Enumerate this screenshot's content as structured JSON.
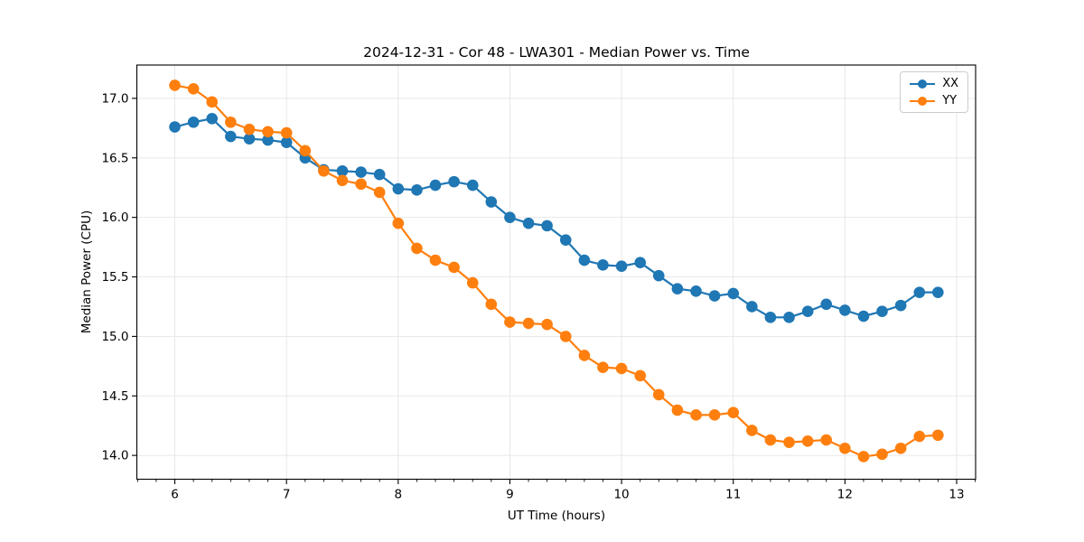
{
  "chart_data": {
    "type": "line",
    "title": "2024-12-31 - Cor 48 - LWA301 - Median Power vs. Time",
    "xlabel": "UT Time (hours)",
    "ylabel": "Median Power (CPU)",
    "xlim": [
      5.66,
      13.17
    ],
    "ylim": [
      13.8,
      17.28
    ],
    "x_ticks": [
      6,
      7,
      8,
      9,
      10,
      11,
      12,
      13
    ],
    "y_ticks": [
      14.0,
      14.5,
      15.0,
      15.5,
      16.0,
      16.5,
      17.0
    ],
    "x_minor_step_per_hour": 6,
    "grid": true,
    "grid_color": "#e5e5e5",
    "spine_color": "#000000",
    "legend_position": "upper right",
    "x": [
      6,
      6.167,
      6.333,
      6.5,
      6.667,
      6.833,
      7,
      7.167,
      7.333,
      7.5,
      7.667,
      7.833,
      8,
      8.167,
      8.333,
      8.5,
      8.667,
      8.833,
      9,
      9.167,
      9.333,
      9.5,
      9.667,
      9.833,
      10,
      10.167,
      10.333,
      10.5,
      10.667,
      10.833,
      11,
      11.167,
      11.333,
      11.5,
      11.667,
      11.833,
      12,
      12.167,
      12.333,
      12.5,
      12.667,
      12.833
    ],
    "series": [
      {
        "name": "XX",
        "color": "#1f77b4",
        "values": [
          16.76,
          16.8,
          16.83,
          16.68,
          16.66,
          16.65,
          16.63,
          16.5,
          16.4,
          16.39,
          16.38,
          16.36,
          16.24,
          16.23,
          16.27,
          16.3,
          16.27,
          16.13,
          16.0,
          15.95,
          15.93,
          15.81,
          15.64,
          15.6,
          15.59,
          15.62,
          15.51,
          15.4,
          15.38,
          15.34,
          15.36,
          15.25,
          15.16,
          15.16,
          15.21,
          15.27,
          15.22,
          15.17,
          15.21,
          15.26,
          15.37,
          15.37
        ]
      },
      {
        "name": "YY",
        "color": "#ff7f0e",
        "values": [
          17.11,
          17.08,
          16.97,
          16.8,
          16.74,
          16.72,
          16.71,
          16.56,
          16.39,
          16.31,
          16.28,
          16.21,
          15.95,
          15.74,
          15.64,
          15.58,
          15.45,
          15.27,
          15.12,
          15.11,
          15.1,
          15.0,
          14.84,
          14.74,
          14.73,
          14.67,
          14.51,
          14.38,
          14.34,
          14.34,
          14.36,
          14.21,
          14.13,
          14.11,
          14.12,
          14.13,
          14.06,
          13.99,
          14.01,
          14.06,
          14.16,
          14.17
        ]
      }
    ]
  }
}
